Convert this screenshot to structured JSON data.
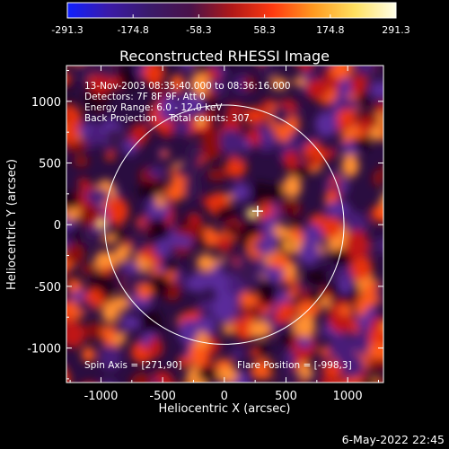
{
  "colorbar": {
    "ticks": [
      "-291.3",
      "-174.8",
      "-58.3",
      "58.3",
      "174.8",
      "291.3"
    ],
    "min": -291.3,
    "max": 291.3,
    "colors": [
      "#1020ff",
      "#3a1aa8",
      "#3a1a6a",
      "#4a124a",
      "#b01818",
      "#ff3a10",
      "#ff9a20",
      "#ffe060",
      "#ffffe8"
    ]
  },
  "chart_data": {
    "type": "heatmap",
    "title": "Reconstructed RHESSI Image",
    "xlabel": "Heliocentric X (arcsec)",
    "ylabel": "Heliocentric Y (arcsec)",
    "xlim": [
      -1280,
      1290
    ],
    "ylim": [
      -1280,
      1290
    ],
    "xticks": [
      -1000,
      -500,
      0,
      500,
      1000
    ],
    "xtick_labels": [
      "-1000",
      "-500",
      "0",
      "500",
      "1000"
    ],
    "yticks": [
      -1000,
      -500,
      0,
      500,
      1000
    ],
    "ytick_labels": [
      "-1000",
      "-500",
      "0",
      "500",
      "1000"
    ],
    "solar_disk": {
      "center": [
        0,
        0
      ],
      "radius_arcsec": 970
    },
    "flare_marker": {
      "x": 270,
      "y": 110
    },
    "colors": {
      "disk": "#ffffff",
      "marker": "#ffffff"
    }
  },
  "annotations": {
    "lines": [
      "13-Nov-2003 08:35:40.000 to 08:36:16.000",
      "Detectors: 7F 8F 9F, Att 0",
      "Energy Range: 6.0 - 12.0 keV",
      "Back Projection    Total counts: 307."
    ],
    "spin_axis": "Spin Axis = [271,90]",
    "flare_position": "Flare Position = [-998,3]"
  },
  "footer": {
    "date": "6-May-2022 22:45"
  }
}
